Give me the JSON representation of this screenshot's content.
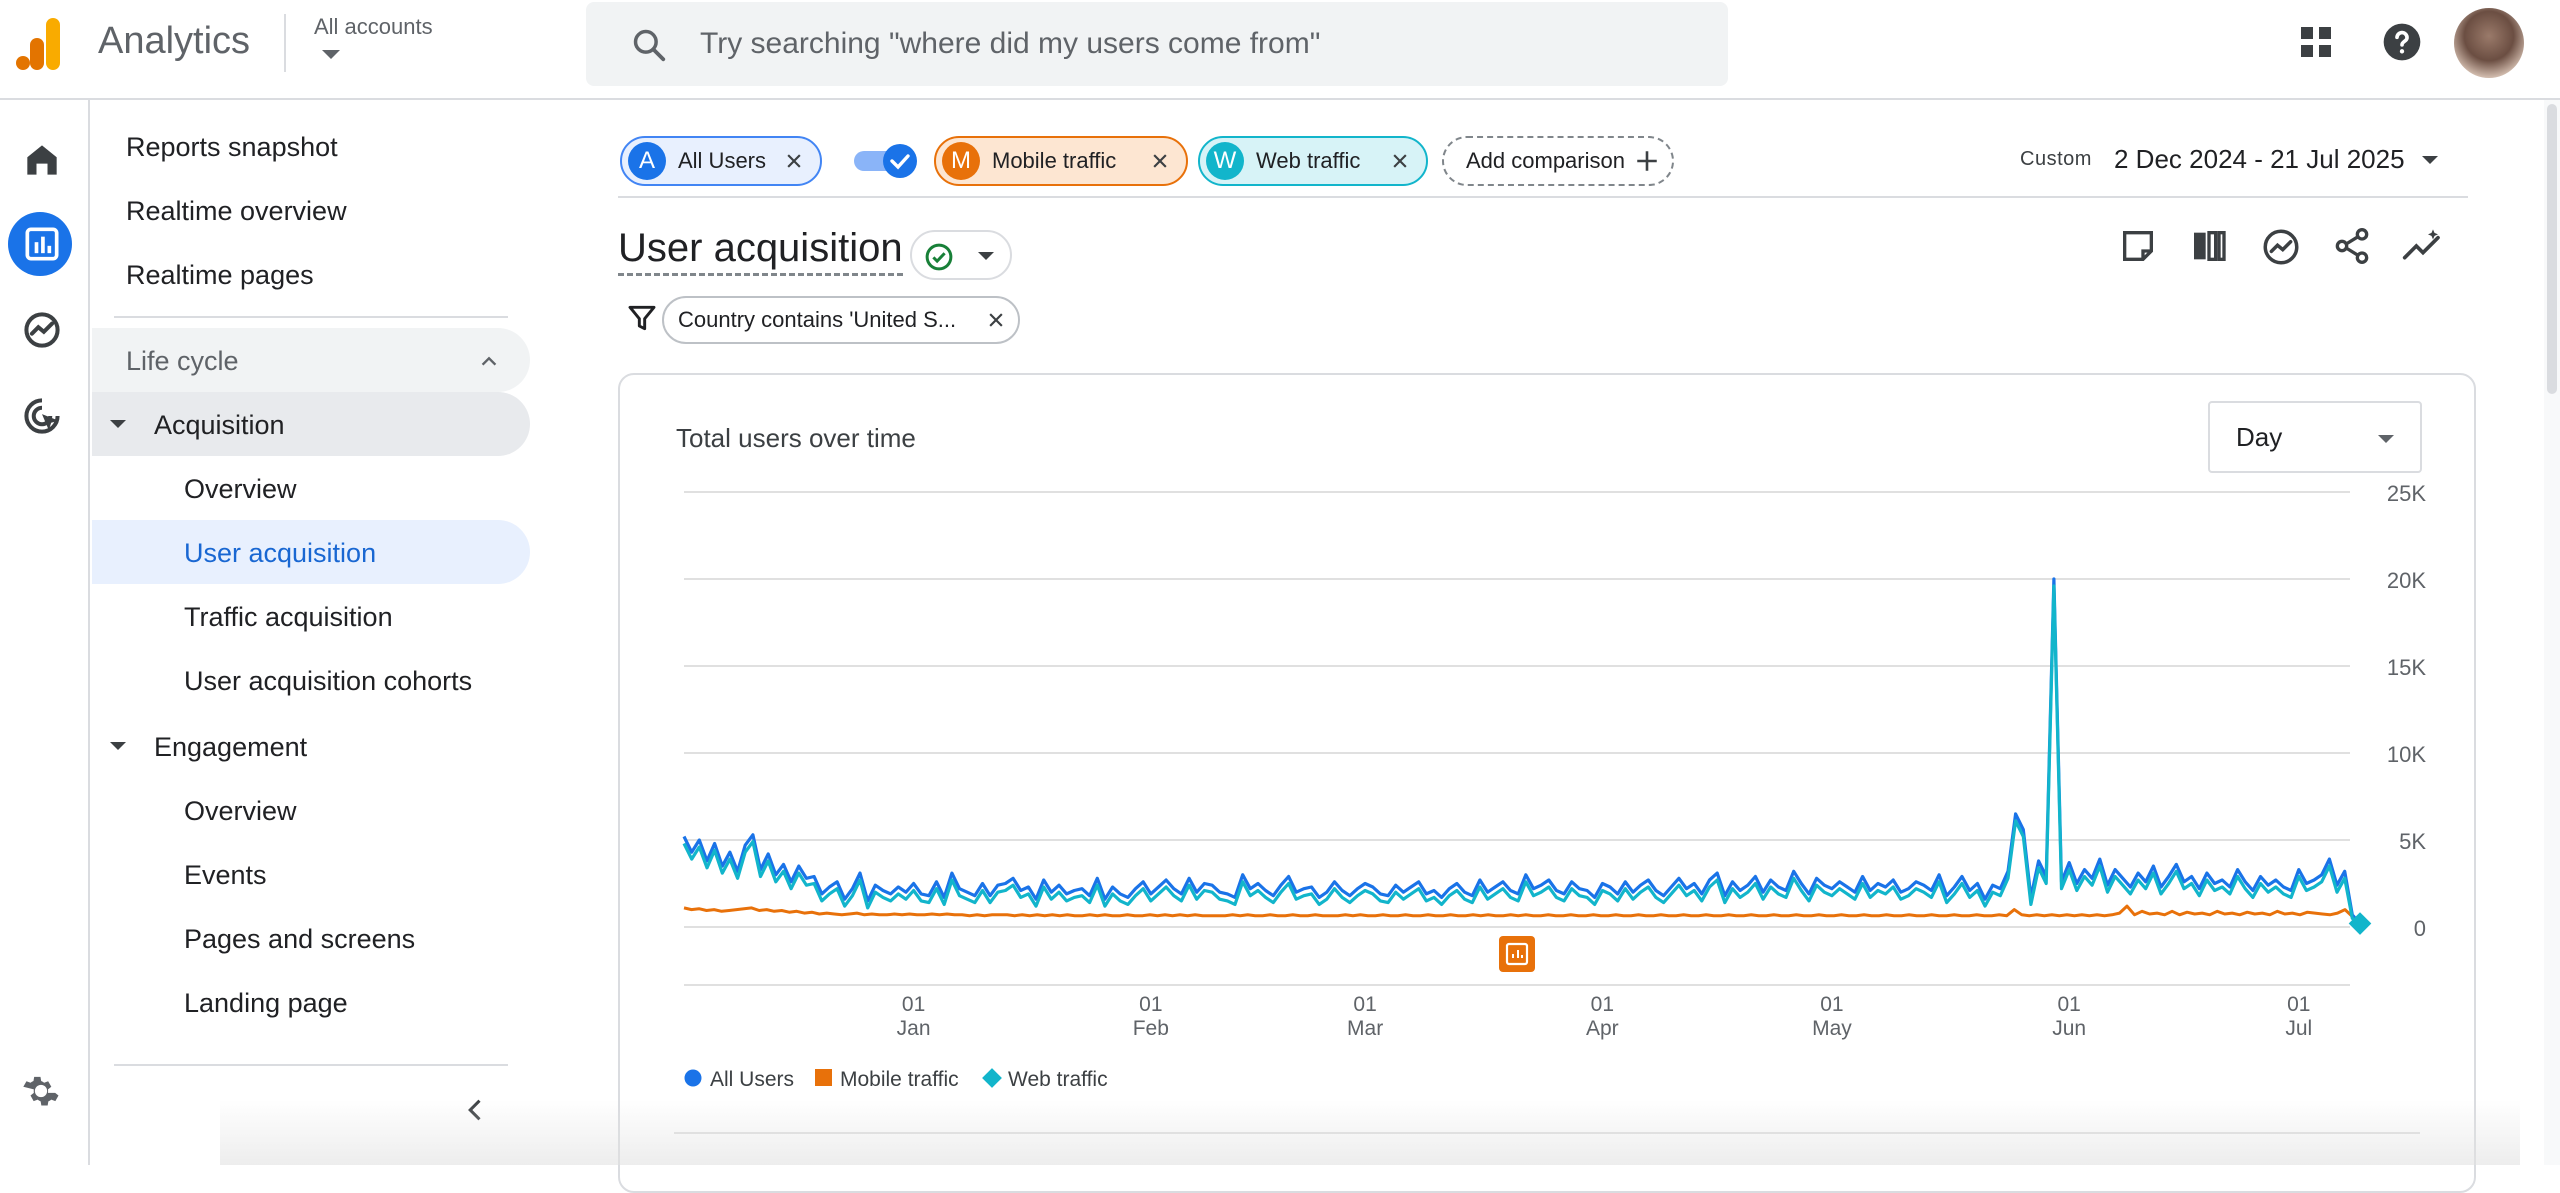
{
  "app": {
    "title": "Analytics",
    "account_label": "All accounts",
    "colors": {
      "accent": "#1a73e8",
      "orange": "#e8710a",
      "teal": "#12b5cb",
      "logo_dark": "#e37400",
      "logo_light": "#f9ab00"
    }
  },
  "search": {
    "placeholder": "Try searching \"where did my users come from\""
  },
  "topbar_icons": [
    "apps-grid-icon",
    "help-icon",
    "avatar"
  ],
  "rail": {
    "items": [
      "home-icon",
      "reports-icon",
      "explore-icon",
      "advertising-icon",
      "settings-icon"
    ]
  },
  "nav": {
    "items": [
      {
        "label": "Reports snapshot"
      },
      {
        "label": "Realtime overview"
      },
      {
        "label": "Realtime pages"
      }
    ],
    "lifecycle": {
      "label": "Life cycle",
      "acquisition": {
        "label": "Acquisition",
        "children": [
          "Overview",
          "User acquisition",
          "Traffic acquisition",
          "User acquisition cohorts"
        ]
      },
      "engagement": {
        "label": "Engagement",
        "children": [
          "Overview",
          "Events",
          "Pages and screens",
          "Landing page"
        ]
      }
    }
  },
  "comparisons": {
    "chips": [
      {
        "letter": "A",
        "label": "All Users"
      },
      {
        "letter": "M",
        "label": "Mobile traffic"
      },
      {
        "letter": "W",
        "label": "Web traffic"
      }
    ],
    "add_label": "Add comparison"
  },
  "date": {
    "custom_label": "Custom",
    "range": "2 Dec 2024 - 21 Jul 2025"
  },
  "page": {
    "title": "User acquisition",
    "filter": "Country contains 'United S..."
  },
  "card": {
    "title": "Total users over time",
    "granularity": "Day"
  },
  "chart_data": {
    "type": "line",
    "title": "Total users over time",
    "x_ticks": [
      {
        "day": "01",
        "month": "Jan"
      },
      {
        "day": "01",
        "month": "Feb"
      },
      {
        "day": "01",
        "month": "Mar"
      },
      {
        "day": "01",
        "month": "Apr"
      },
      {
        "day": "01",
        "month": "May"
      },
      {
        "day": "01",
        "month": "Jun"
      },
      {
        "day": "01",
        "month": "Jul"
      }
    ],
    "y_ticks": [
      "25K",
      "20K",
      "15K",
      "10K",
      "5K",
      "0"
    ],
    "ylim": [
      0,
      25000
    ],
    "series": [
      {
        "name": "All Users",
        "color": "#1a73e8",
        "marker": "circle",
        "values": [
          5200,
          4300,
          5000,
          3800,
          4800,
          3500,
          4300,
          3200,
          4700,
          5300,
          3300,
          4200,
          3000,
          3600,
          2600,
          3500,
          2800,
          2900,
          1900,
          2300,
          2600,
          1600,
          2200,
          3100,
          1500,
          2400,
          2100,
          1900,
          2300,
          2000,
          2500,
          1900,
          1800,
          2600,
          1700,
          3100,
          2200,
          2000,
          1800,
          2500,
          1800,
          2400,
          2500,
          2800,
          2100,
          2300,
          1600,
          2700,
          2000,
          2400,
          1900,
          2100,
          2200,
          1800,
          2800,
          1600,
          2300,
          1900,
          1700,
          2200,
          2600,
          1900,
          2300,
          2700,
          2200,
          1900,
          2800,
          2000,
          2500,
          2400,
          2000,
          1900,
          1700,
          3000,
          2200,
          2500,
          2100,
          1800,
          2400,
          2900,
          2000,
          2200,
          2300,
          1700,
          2000,
          2600,
          2100,
          1800,
          2200,
          2500,
          2300,
          1900,
          1800,
          2400,
          2000,
          2300,
          2600,
          1900,
          2100,
          1700,
          2200,
          2500,
          2000,
          1800,
          2700,
          2000,
          2300,
          2600,
          2100,
          1900,
          3000,
          2200,
          2400,
          2700,
          2100,
          1900,
          2600,
          2200,
          2100,
          1700,
          2500,
          2300,
          1900,
          2600,
          2000,
          2400,
          2700,
          2100,
          1800,
          2300,
          2800,
          2200,
          2500,
          1900,
          2700,
          3100,
          1800,
          2600,
          2100,
          2400,
          2900,
          2000,
          2700,
          2300,
          2100,
          3200,
          2500,
          1900,
          2800,
          2400,
          2200,
          2600,
          2300,
          2000,
          2900,
          2100,
          2500,
          2300,
          2700,
          2000,
          2200,
          2600,
          2400,
          2100,
          3000,
          1800,
          2300,
          2900,
          2100,
          2500,
          1600,
          2400,
          2200,
          3200,
          6500,
          5600,
          1700,
          3800,
          2900,
          20000,
          2600,
          3700,
          2500,
          3300,
          2800,
          3900,
          2400,
          3300,
          2800,
          2300,
          3100,
          2600,
          3500,
          2300,
          2900,
          3600,
          2600,
          2900,
          2200,
          3100,
          2500,
          2700,
          2300,
          3300,
          2600,
          2100,
          2900,
          2400,
          2700,
          2300,
          2100,
          3300,
          2500,
          2700,
          3000,
          3900,
          2400,
          3200,
          700,
          200
        ]
      },
      {
        "name": "Mobile traffic",
        "color": "#e8710a",
        "marker": "square",
        "values": [
          1100,
          1000,
          1050,
          950,
          1000,
          900,
          950,
          1000,
          1050,
          1100,
          950,
          1000,
          900,
          950,
          850,
          900,
          800,
          850,
          750,
          800,
          750,
          700,
          750,
          800,
          700,
          750,
          700,
          700,
          750,
          700,
          750,
          700,
          700,
          750,
          700,
          750,
          700,
          700,
          650,
          700,
          650,
          700,
          700,
          700,
          650,
          700,
          650,
          700,
          650,
          700,
          650,
          700,
          650,
          650,
          700,
          650,
          700,
          650,
          650,
          700,
          650,
          650,
          700,
          650,
          700,
          650,
          700,
          650,
          700,
          650,
          650,
          650,
          650,
          700,
          650,
          700,
          650,
          650,
          700,
          650,
          650,
          700,
          650,
          650,
          700,
          650,
          650,
          650,
          700,
          650,
          700,
          650,
          650,
          700,
          650,
          650,
          700,
          650,
          650,
          700,
          650,
          650,
          700,
          650,
          650,
          700,
          650,
          700,
          650,
          650,
          700,
          650,
          700,
          650,
          650,
          700,
          650,
          650,
          700,
          650,
          650,
          700,
          650,
          650,
          700,
          650,
          650,
          700,
          650,
          650,
          700,
          650,
          650,
          700,
          650,
          650,
          700,
          650,
          650,
          700,
          650,
          650,
          700,
          650,
          650,
          700,
          650,
          650,
          700,
          650,
          650,
          700,
          650,
          650,
          700,
          650,
          650,
          700,
          650,
          650,
          700,
          650,
          650,
          700,
          650,
          650,
          700,
          650,
          650,
          700,
          650,
          650,
          700,
          650,
          650,
          700,
          650,
          1000,
          700,
          650,
          700,
          650,
          700,
          650,
          700,
          650,
          700,
          650,
          700,
          650,
          700,
          800,
          1200,
          700,
          900,
          750,
          800,
          700,
          900,
          700,
          850,
          750,
          800,
          700,
          900,
          750,
          800,
          700,
          850,
          750,
          800,
          700,
          900,
          750,
          800,
          700,
          850,
          800,
          750,
          700,
          800,
          1000,
          600,
          200
        ]
      },
      {
        "name": "Web traffic",
        "color": "#12b5cb",
        "marker": "diamond",
        "values": [
          4800,
          3900,
          4600,
          3400,
          4400,
          3100,
          3900,
          2800,
          4300,
          4900,
          2900,
          3800,
          2600,
          3200,
          2200,
          3100,
          2400,
          2500,
          1500,
          1900,
          2200,
          1200,
          1800,
          2700,
          1100,
          2000,
          1700,
          1500,
          1900,
          1600,
          2100,
          1500,
          1400,
          2200,
          1300,
          2700,
          1800,
          1600,
          1400,
          2100,
          1400,
          2000,
          2100,
          2400,
          1700,
          1900,
          1200,
          2300,
          1600,
          2000,
          1500,
          1700,
          1800,
          1400,
          2400,
          1200,
          1900,
          1500,
          1300,
          1800,
          2200,
          1500,
          1900,
          2300,
          1800,
          1500,
          2400,
          1600,
          2100,
          2000,
          1600,
          1500,
          1300,
          2600,
          1800,
          2100,
          1700,
          1400,
          2000,
          2500,
          1600,
          1800,
          1900,
          1300,
          1600,
          2200,
          1700,
          1400,
          1800,
          2100,
          1900,
          1500,
          1400,
          2000,
          1600,
          1900,
          2200,
          1500,
          1700,
          1300,
          1800,
          2100,
          1600,
          1400,
          2300,
          1600,
          1900,
          2200,
          1700,
          1500,
          2600,
          1800,
          2000,
          2300,
          1700,
          1500,
          2200,
          1800,
          1700,
          1300,
          2100,
          1900,
          1500,
          2200,
          1600,
          2000,
          2300,
          1700,
          1400,
          1900,
          2400,
          1800,
          2100,
          1500,
          2300,
          2700,
          1400,
          2200,
          1700,
          2000,
          2500,
          1600,
          2300,
          1900,
          1700,
          2800,
          2100,
          1500,
          2400,
          2000,
          1800,
          2200,
          1900,
          1600,
          2500,
          1700,
          2100,
          1900,
          2300,
          1600,
          1800,
          2200,
          2000,
          1700,
          2600,
          1400,
          1900,
          2500,
          1700,
          2100,
          1200,
          2000,
          1800,
          2800,
          6100,
          5200,
          1300,
          3400,
          2500,
          19600,
          2200,
          3300,
          2100,
          2900,
          2400,
          3500,
          2000,
          2900,
          2400,
          1900,
          2700,
          2200,
          3100,
          1900,
          2500,
          3200,
          2200,
          2500,
          1800,
          2700,
          2100,
          2300,
          1900,
          2900,
          2200,
          1700,
          2500,
          2000,
          2300,
          1900,
          1700,
          2900,
          2100,
          2300,
          2600,
          3500,
          2000,
          2800,
          500,
          200
        ]
      }
    ],
    "legend": [
      "All Users",
      "Mobile traffic",
      "Web traffic"
    ],
    "legend_position": "bottom-left"
  }
}
